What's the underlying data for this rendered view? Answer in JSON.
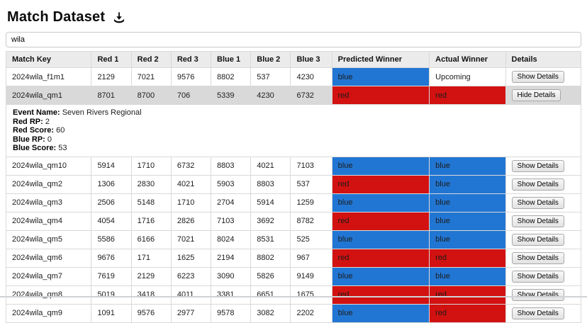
{
  "header": {
    "title": "Match Dataset"
  },
  "search": {
    "value": "wila",
    "placeholder": ""
  },
  "colors": {
    "blue": "#2276d3",
    "red": "#d21111",
    "selected_row_bg": "#d9d9d9",
    "header_bg": "#ebebeb"
  },
  "table": {
    "columns": [
      "Match Key",
      "Red 1",
      "Red 2",
      "Red 3",
      "Blue 1",
      "Blue 2",
      "Blue 3",
      "Predicted Winner",
      "Actual Winner",
      "Details"
    ],
    "rows": [
      {
        "match_key": "2024wila_f1m1",
        "red1": "2129",
        "red2": "7021",
        "red3": "9576",
        "blue1": "8802",
        "blue2": "537",
        "blue3": "4230",
        "predicted": {
          "label": "blue",
          "color": "blue"
        },
        "actual": {
          "label": "Upcoming",
          "color": null
        },
        "details_button": "Show Details",
        "selected": false,
        "expanded": null
      },
      {
        "match_key": "2024wila_qm1",
        "red1": "8701",
        "red2": "8700",
        "red3": "706",
        "blue1": "5339",
        "blue2": "4230",
        "blue3": "6732",
        "predicted": {
          "label": "red",
          "color": "red"
        },
        "actual": {
          "label": "red",
          "color": "red"
        },
        "details_button": "Hide Details",
        "selected": true,
        "expanded": {
          "fields": [
            {
              "label": "Event Name:",
              "value": "Seven Rivers Regional"
            },
            {
              "label": "Red RP:",
              "value": "2"
            },
            {
              "label": "Red Score:",
              "value": "60"
            },
            {
              "label": "Blue RP:",
              "value": "0"
            },
            {
              "label": "Blue Score:",
              "value": "53"
            }
          ]
        }
      },
      {
        "match_key": "2024wila_qm10",
        "red1": "5914",
        "red2": "1710",
        "red3": "6732",
        "blue1": "8803",
        "blue2": "4021",
        "blue3": "7103",
        "predicted": {
          "label": "blue",
          "color": "blue"
        },
        "actual": {
          "label": "blue",
          "color": "blue"
        },
        "details_button": "Show Details",
        "selected": false,
        "expanded": null
      },
      {
        "match_key": "2024wila_qm2",
        "red1": "1306",
        "red2": "2830",
        "red3": "4021",
        "blue1": "5903",
        "blue2": "8803",
        "blue3": "537",
        "predicted": {
          "label": "red",
          "color": "red"
        },
        "actual": {
          "label": "blue",
          "color": "blue"
        },
        "details_button": "Show Details",
        "selected": false,
        "expanded": null
      },
      {
        "match_key": "2024wila_qm3",
        "red1": "2506",
        "red2": "5148",
        "red3": "1710",
        "blue1": "2704",
        "blue2": "5914",
        "blue3": "1259",
        "predicted": {
          "label": "blue",
          "color": "blue"
        },
        "actual": {
          "label": "blue",
          "color": "blue"
        },
        "details_button": "Show Details",
        "selected": false,
        "expanded": null
      },
      {
        "match_key": "2024wila_qm4",
        "red1": "4054",
        "red2": "1716",
        "red3": "2826",
        "blue1": "7103",
        "blue2": "3692",
        "blue3": "8782",
        "predicted": {
          "label": "red",
          "color": "red"
        },
        "actual": {
          "label": "blue",
          "color": "blue"
        },
        "details_button": "Show Details",
        "selected": false,
        "expanded": null
      },
      {
        "match_key": "2024wila_qm5",
        "red1": "5586",
        "red2": "6166",
        "red3": "7021",
        "blue1": "8024",
        "blue2": "8531",
        "blue3": "525",
        "predicted": {
          "label": "blue",
          "color": "blue"
        },
        "actual": {
          "label": "blue",
          "color": "blue"
        },
        "details_button": "Show Details",
        "selected": false,
        "expanded": null
      },
      {
        "match_key": "2024wila_qm6",
        "red1": "9676",
        "red2": "171",
        "red3": "1625",
        "blue1": "2194",
        "blue2": "8802",
        "blue3": "967",
        "predicted": {
          "label": "red",
          "color": "red"
        },
        "actual": {
          "label": "red",
          "color": "red"
        },
        "details_button": "Show Details",
        "selected": false,
        "expanded": null
      },
      {
        "match_key": "2024wila_qm7",
        "red1": "7619",
        "red2": "2129",
        "red3": "6223",
        "blue1": "3090",
        "blue2": "5826",
        "blue3": "9149",
        "predicted": {
          "label": "blue",
          "color": "blue"
        },
        "actual": {
          "label": "blue",
          "color": "blue"
        },
        "details_button": "Show Details",
        "selected": false,
        "expanded": null
      },
      {
        "match_key": "2024wila_qm8",
        "red1": "5019",
        "red2": "3418",
        "red3": "4011",
        "blue1": "3381",
        "blue2": "6651",
        "blue3": "1675",
        "predicted": {
          "label": "red",
          "color": "red"
        },
        "actual": {
          "label": "red",
          "color": "red"
        },
        "details_button": "Show Details",
        "selected": false,
        "expanded": null
      },
      {
        "match_key": "2024wila_qm9",
        "red1": "1091",
        "red2": "9576",
        "red3": "2977",
        "blue1": "9578",
        "blue2": "3082",
        "blue3": "2202",
        "predicted": {
          "label": "blue",
          "color": "blue"
        },
        "actual": {
          "label": "red",
          "color": "red"
        },
        "details_button": "Show Details",
        "selected": false,
        "expanded": null
      }
    ]
  }
}
